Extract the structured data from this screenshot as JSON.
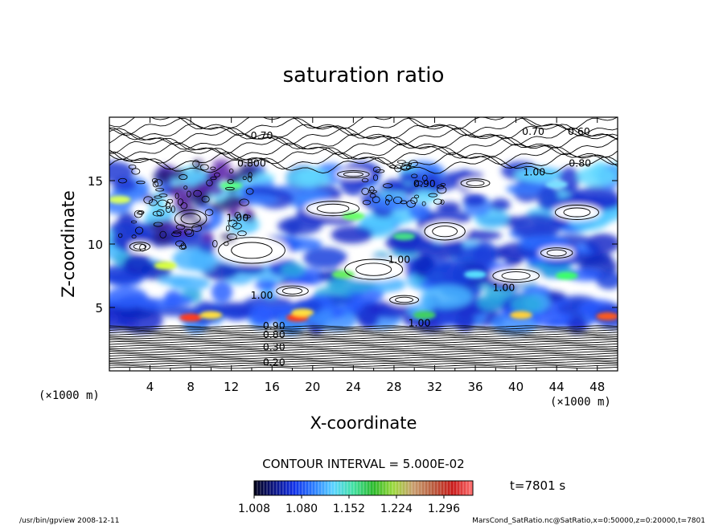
{
  "chart_data": {
    "type": "heatmap",
    "title": "saturation ratio",
    "xlabel": "X-coordinate",
    "ylabel": "Z-coordinate",
    "x_unit_left": "(×1000 m)",
    "x_unit_right": "(×1000 m)",
    "xlim": [
      0,
      50
    ],
    "ylim": [
      0,
      20
    ],
    "x_ticks": [
      4,
      8,
      12,
      16,
      20,
      24,
      28,
      32,
      36,
      40,
      44,
      48
    ],
    "y_ticks": [
      5,
      10,
      15
    ],
    "contour_interval_text": "CONTOUR INTERVAL = 5.000E-02",
    "time_text": "t=7801 s",
    "colorbar": {
      "ticks": [
        "1.008",
        "1.080",
        "1.152",
        "1.224",
        "1.296"
      ],
      "range": [
        1.008,
        1.34
      ],
      "colors": [
        "#000018",
        "#0a1280",
        "#1030e8",
        "#2a7cff",
        "#58d4ff",
        "#40e0a0",
        "#28b828",
        "#9cd83c",
        "#c89c6c",
        "#b85a3c",
        "#c81818",
        "#ff7070"
      ]
    },
    "contour_labels": [
      {
        "text": "0.70",
        "x": 15.0,
        "y": 18.3
      },
      {
        "text": "0.70",
        "x": 41.7,
        "y": 18.6
      },
      {
        "text": "0.60",
        "x": 46.2,
        "y": 18.6
      },
      {
        "text": "0.800",
        "x": 14.0,
        "y": 16.1
      },
      {
        "text": "0.80",
        "x": 46.3,
        "y": 16.1
      },
      {
        "text": "1.00",
        "x": 41.8,
        "y": 15.4
      },
      {
        "text": "0.90",
        "x": 31.0,
        "y": 14.5
      },
      {
        "text": "1.00",
        "x": 12.6,
        "y": 11.8
      },
      {
        "text": "1.00",
        "x": 28.5,
        "y": 8.5
      },
      {
        "text": "1.00",
        "x": 38.8,
        "y": 6.3
      },
      {
        "text": "1.00",
        "x": 15.0,
        "y": 5.7
      },
      {
        "text": "1.00",
        "x": 30.5,
        "y": 3.5
      },
      {
        "text": "0.90",
        "x": 16.2,
        "y": 3.3
      },
      {
        "text": "0.80",
        "x": 16.2,
        "y": 2.6
      },
      {
        "text": "0.30",
        "x": 16.2,
        "y": 1.6
      },
      {
        "text": "0.20",
        "x": 16.2,
        "y": 0.4
      }
    ],
    "grid": false
  },
  "footer": {
    "left": "/usr/bin/gpview   2008-12-11",
    "right": "MarsCond_SatRatio.nc@SatRatio,x=0:50000,z=0:20000,t=7801"
  }
}
